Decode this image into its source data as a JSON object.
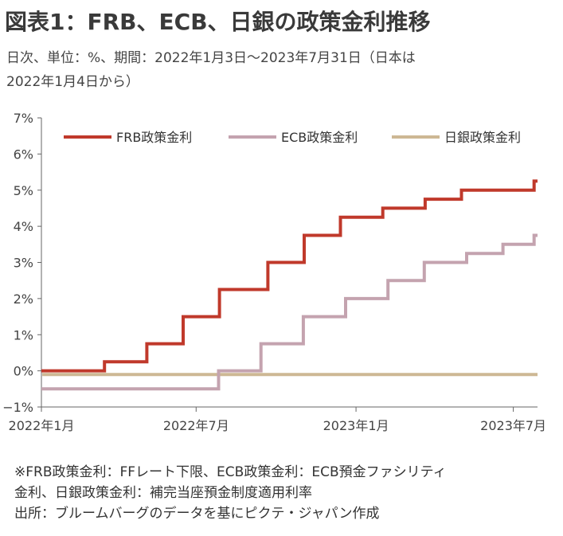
{
  "title": "図表1：FRB、ECB、日銀の政策金利推移",
  "subtitle_line1": "日次、単位：%、期間：2022年1月3日～2023年7月31日（日本は",
  "subtitle_line2": "2022年1月4日から）",
  "notes": [
    "※FRB政策金利：FFレート下限、ECB政策金利：ECB預金ファシリティ",
    "金利、日銀政策金利：補完当座預金制度適用利率",
    "出所：ブルームバーグのデータを基にピクテ・ジャパン作成"
  ],
  "chart_data": {
    "type": "line",
    "x_range": [
      "2022-01-03",
      "2023-07-31"
    ],
    "ylim": [
      -1,
      7
    ],
    "y_ticks": [
      {
        "value": 7,
        "label": "7%"
      },
      {
        "value": 6,
        "label": "6%"
      },
      {
        "value": 5,
        "label": "5%"
      },
      {
        "value": 4,
        "label": "4%"
      },
      {
        "value": 3,
        "label": "3%"
      },
      {
        "value": 2,
        "label": "2%"
      },
      {
        "value": 1,
        "label": "1%"
      },
      {
        "value": 0,
        "label": "0%"
      },
      {
        "value": -1,
        "label": "−1%"
      }
    ],
    "x_ticks": [
      {
        "date": "2022-01-03",
        "label": "2022年1月"
      },
      {
        "date": "2022-07-01",
        "label": "2022年7月"
      },
      {
        "date": "2023-01-02",
        "label": "2023年1月"
      },
      {
        "date": "2023-07-03",
        "label": "2023年7月"
      }
    ],
    "legend_position": "top",
    "series": [
      {
        "name": "FRB政策金利",
        "color": "#c0392b",
        "steps": [
          [
            "2022-01-03",
            0.0
          ],
          [
            "2022-03-17",
            0.25
          ],
          [
            "2022-05-05",
            0.75
          ],
          [
            "2022-06-16",
            1.5
          ],
          [
            "2022-07-28",
            2.25
          ],
          [
            "2022-09-22",
            3.0
          ],
          [
            "2022-11-03",
            3.75
          ],
          [
            "2022-12-15",
            4.25
          ],
          [
            "2023-02-02",
            4.5
          ],
          [
            "2023-03-23",
            4.75
          ],
          [
            "2023-05-04",
            5.0
          ],
          [
            "2023-07-27",
            5.25
          ],
          [
            "2023-07-31",
            5.25
          ]
        ]
      },
      {
        "name": "ECB政策金利",
        "color": "#c4a3af",
        "steps": [
          [
            "2022-01-03",
            -0.5
          ],
          [
            "2022-07-27",
            0.0
          ],
          [
            "2022-09-14",
            0.75
          ],
          [
            "2022-11-02",
            1.5
          ],
          [
            "2022-12-21",
            2.0
          ],
          [
            "2023-02-08",
            2.5
          ],
          [
            "2023-03-22",
            3.0
          ],
          [
            "2023-05-10",
            3.25
          ],
          [
            "2023-06-21",
            3.5
          ],
          [
            "2023-07-27",
            3.75
          ],
          [
            "2023-07-31",
            3.75
          ]
        ]
      },
      {
        "name": "日銀政策金利",
        "color": "#cdb894",
        "steps": [
          [
            "2022-01-04",
            -0.1
          ],
          [
            "2023-07-31",
            -0.1
          ]
        ]
      }
    ]
  }
}
